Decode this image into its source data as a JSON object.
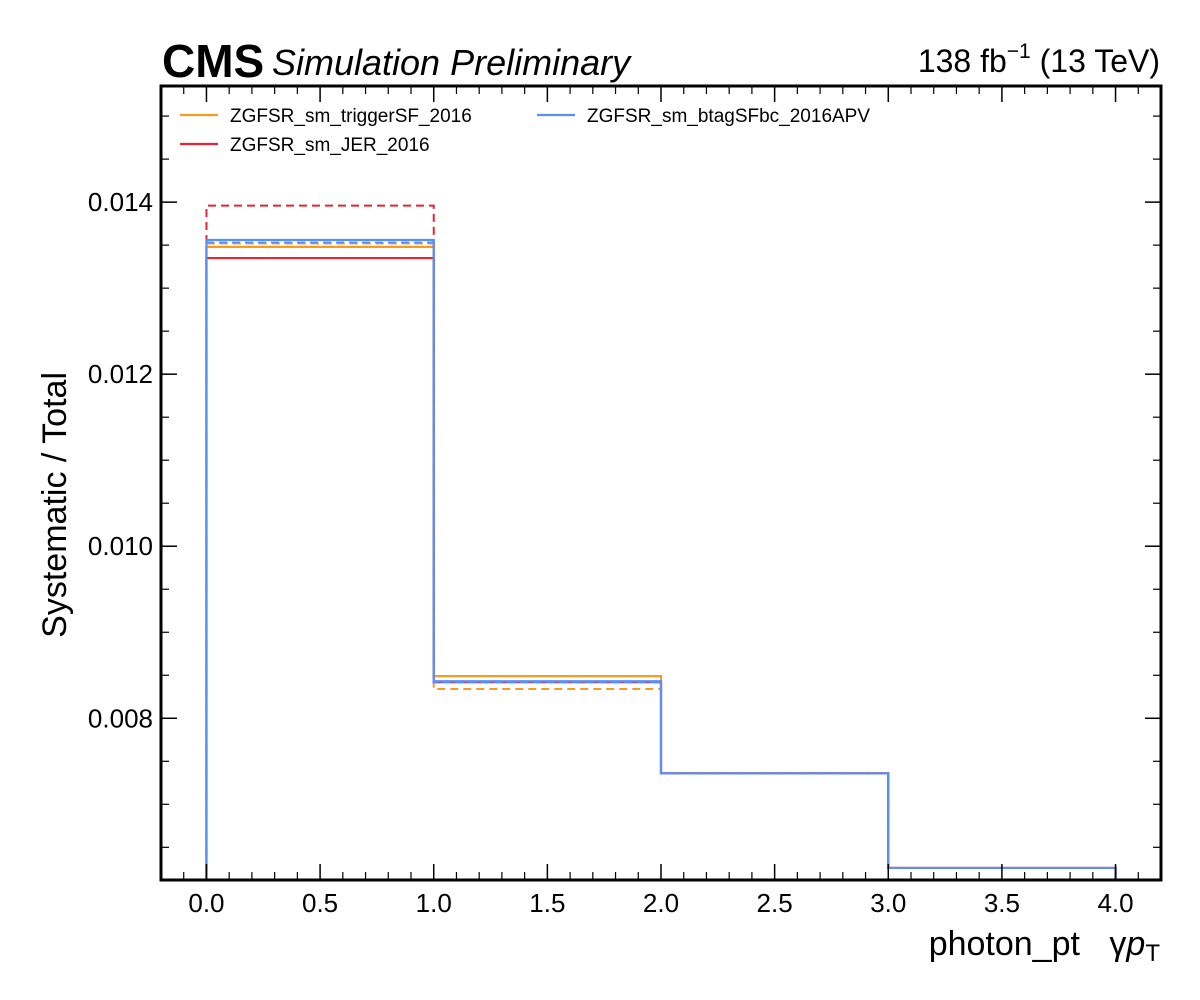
{
  "header": {
    "cms": "CMS",
    "tag": "Simulation Preliminary",
    "lumi_value": "138 fb",
    "lumi_exp": "−1",
    "lumi_energy": " (13 TeV)"
  },
  "chart_data": {
    "type": "step",
    "ylabel": "Systematic / Total",
    "xlabel_main": "photon_pt",
    "xlabel_symbol": "γ",
    "xlabel_p": "p",
    "xlabel_sub": "T",
    "xlim": [
      -0.2,
      4.2
    ],
    "ylim": [
      0.00612,
      0.01535
    ],
    "xticks": [
      0.0,
      0.5,
      1.0,
      1.5,
      2.0,
      2.5,
      3.0,
      3.5,
      4.0
    ],
    "xtick_labels": [
      "0.0",
      "0.5",
      "1.0",
      "1.5",
      "2.0",
      "2.5",
      "3.0",
      "3.5",
      "4.0"
    ],
    "yticks": [
      0.008,
      0.01,
      0.012,
      0.014
    ],
    "ytick_labels": [
      "0.008",
      "0.010",
      "0.012",
      "0.014"
    ],
    "bin_edges": [
      0,
      1,
      2,
      3,
      4
    ],
    "legend_position": "top-left, two columns",
    "series": [
      {
        "name": "ZGFSR_sm_triggerSF_2016",
        "color": "#f89c20",
        "up": [
          0.01348,
          0.00849,
          0.00736,
          0.00626
        ],
        "down": [
          0.01352,
          0.00834,
          0.00736,
          0.00626
        ]
      },
      {
        "name": "ZGFSR_sm_JER_2016",
        "color": "#e42536",
        "up": [
          0.01335,
          0.00842,
          0.00736,
          0.00626
        ],
        "down": [
          0.01396,
          0.00842,
          0.00736,
          0.00626
        ]
      },
      {
        "name": "ZGFSR_sm_btagSFbc_2016APV",
        "color": "#5790fc",
        "up": [
          0.01356,
          0.00843,
          0.00736,
          0.00626
        ],
        "down": [
          0.01353,
          0.00842,
          0.00736,
          0.00626
        ]
      }
    ]
  }
}
